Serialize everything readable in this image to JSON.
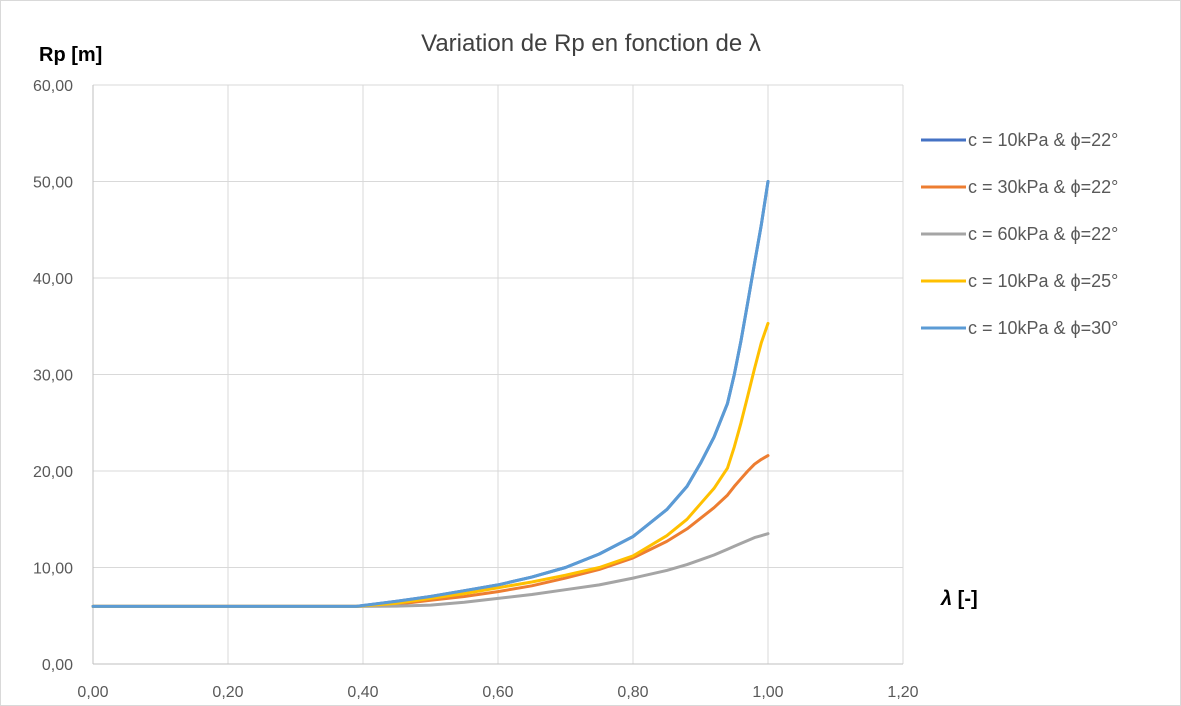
{
  "chart_data": {
    "type": "line",
    "title": "Variation de Rp en fonction de λ",
    "ylabel": "Rp [m]",
    "xlabel_symbol": "λ",
    "xlabel_unit": " [-]",
    "xlim": [
      0,
      1.2
    ],
    "ylim": [
      0,
      60
    ],
    "xticks": [
      "0,00",
      "0,20",
      "0,40",
      "0,60",
      "0,80",
      "1,00",
      "1,20"
    ],
    "yticks": [
      "0,00",
      "10,00",
      "20,00",
      "30,00",
      "40,00",
      "50,00",
      "60,00"
    ],
    "grid": true,
    "legend_position": "right",
    "x": [
      0.0,
      0.1,
      0.2,
      0.3,
      0.39,
      0.45,
      0.5,
      0.55,
      0.6,
      0.65,
      0.7,
      0.75,
      0.8,
      0.85,
      0.88,
      0.9,
      0.92,
      0.94,
      0.95,
      0.96,
      0.97,
      0.98,
      0.99,
      1.0
    ],
    "series": [
      {
        "name": "c = 10kPa & ϕ=22°",
        "color": "#4472c4",
        "values": [
          5.97,
          5.97,
          5.97,
          5.97,
          5.97,
          6.5,
          7.0,
          7.6,
          8.2,
          9.0,
          10.0,
          11.4,
          13.2,
          16.0,
          18.4,
          20.8,
          23.5,
          27.0,
          30.0,
          33.5,
          37.5,
          41.5,
          45.5,
          50.0
        ]
      },
      {
        "name": "c = 30kPa & ϕ=22°",
        "color": "#ed7d31",
        "values": [
          5.97,
          5.97,
          5.97,
          5.97,
          5.97,
          6.2,
          6.6,
          7.0,
          7.5,
          8.1,
          8.9,
          9.8,
          11.0,
          12.7,
          14.0,
          15.1,
          16.2,
          17.5,
          18.4,
          19.2,
          20.0,
          20.7,
          21.2,
          21.6
        ]
      },
      {
        "name": "c = 60kPa & ϕ=22°",
        "color": "#a5a5a5",
        "values": [
          5.97,
          5.97,
          5.97,
          5.97,
          5.97,
          6.0,
          6.1,
          6.4,
          6.8,
          7.2,
          7.7,
          8.2,
          8.9,
          9.7,
          10.3,
          10.8,
          11.3,
          11.9,
          12.2,
          12.5,
          12.8,
          13.1,
          13.3,
          13.5
        ]
      },
      {
        "name": "c = 10kPa & ϕ=25°",
        "color": "#ffc000",
        "values": [
          5.97,
          5.97,
          5.97,
          5.97,
          5.97,
          6.3,
          6.8,
          7.3,
          7.9,
          8.5,
          9.2,
          10.0,
          11.2,
          13.3,
          15.0,
          16.6,
          18.2,
          20.3,
          22.5,
          25.0,
          27.8,
          30.6,
          33.3,
          35.3
        ]
      },
      {
        "name": "c = 10kPa & ϕ=30°",
        "color": "#5b9bd5",
        "values": [
          5.97,
          5.97,
          5.97,
          5.97,
          5.97,
          6.5,
          7.0,
          7.6,
          8.2,
          9.0,
          10.0,
          11.4,
          13.2,
          16.0,
          18.4,
          20.8,
          23.5,
          27.0,
          30.0,
          33.5,
          37.5,
          41.5,
          45.5,
          50.0
        ]
      }
    ]
  }
}
